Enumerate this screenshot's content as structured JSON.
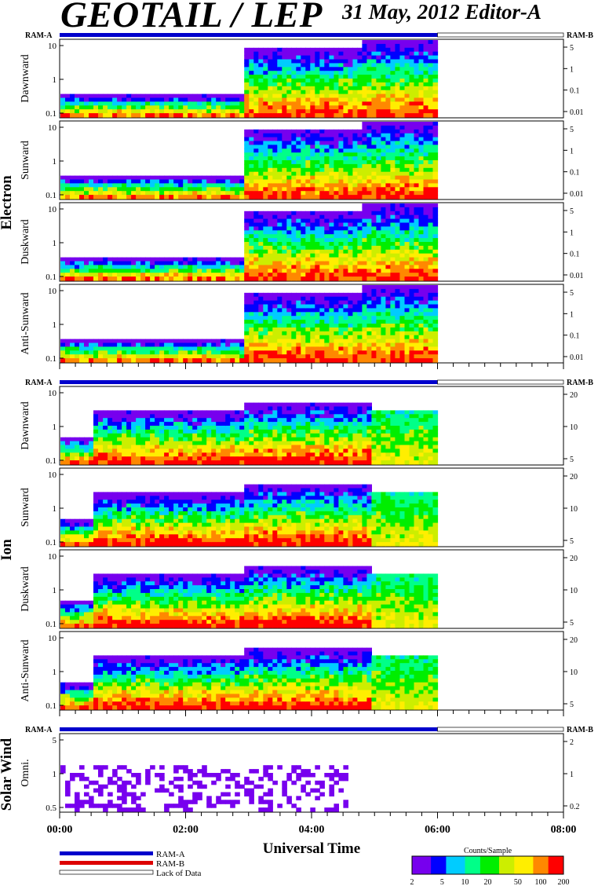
{
  "header": {
    "title": "GEOTAIL / LEP",
    "date_editor": "31 May, 2012   Editor-A"
  },
  "colors": {
    "ram_a": "#0000cc",
    "ram_b": "#dd0000",
    "colormap": [
      "#7700ee",
      "#0000ff",
      "#00ccff",
      "#00ff88",
      "#00ee00",
      "#ccee00",
      "#ffee00",
      "#ff8800",
      "#ff0000"
    ]
  },
  "chart_data": {
    "type": "heatmap",
    "xlabel": "Universal Time",
    "x_ticks": [
      "00:00",
      "02:00",
      "04:00",
      "06:00",
      "08:00"
    ],
    "x_range_hours": [
      0,
      8
    ],
    "data_end_hour": 6.0,
    "groups": [
      {
        "name": "Electron",
        "ram_left": "RAM-A",
        "ram_right": "RAM-B",
        "panels": [
          {
            "label": "Dawnward",
            "y_ticks": [
              "0.1",
              "1",
              "10"
            ],
            "right_ticks": [
              "5",
              "1",
              "0.1",
              "0.01"
            ]
          },
          {
            "label": "Sunward",
            "y_ticks": [
              "0.1",
              "1",
              "10"
            ],
            "right_ticks": [
              "5",
              "1",
              "0.1",
              "0.01"
            ]
          },
          {
            "label": "Duskward",
            "y_ticks": [
              "0.1",
              "1",
              "10"
            ],
            "right_ticks": [
              "5",
              "1",
              "0.1",
              "0.01"
            ]
          },
          {
            "label": "Anti-Sunward",
            "y_ticks": [
              "0.1",
              "1",
              "10"
            ],
            "right_ticks": [
              "5",
              "1",
              "0.1",
              "0.01"
            ]
          }
        ]
      },
      {
        "name": "Ion",
        "ram_left": "RAM-A",
        "ram_right": "RAM-B",
        "panels": [
          {
            "label": "Dawnward",
            "y_ticks": [
              "0.1",
              "1",
              "10"
            ],
            "right_ticks": [
              "20",
              "10",
              "5"
            ]
          },
          {
            "label": "Sunward",
            "y_ticks": [
              "0.1",
              "1",
              "10"
            ],
            "right_ticks": [
              "20",
              "10",
              "5"
            ]
          },
          {
            "label": "Duskward",
            "y_ticks": [
              "0.1",
              "1",
              "10"
            ],
            "right_ticks": [
              "20",
              "10",
              "5"
            ]
          },
          {
            "label": "Anti-Sunward",
            "y_ticks": [
              "0.1",
              "1",
              "10"
            ],
            "right_ticks": [
              "20",
              "10",
              "5"
            ]
          }
        ]
      },
      {
        "name": "Solar Wind",
        "ram_left": "RAM-A",
        "ram_right": "RAM-B",
        "panels": [
          {
            "label": "Omni.",
            "y_ticks": [
              "0.5",
              "1",
              "5"
            ],
            "right_ticks": [
              "2",
              "1",
              "0.2"
            ]
          }
        ]
      }
    ],
    "legend": {
      "items": [
        "RAM-A",
        "RAM-B",
        "Lack of Data"
      ]
    },
    "colorbar": {
      "title": "Counts/Sample",
      "ticks": [
        "2",
        "5",
        "10",
        "20",
        "50",
        "100",
        "200"
      ]
    }
  }
}
